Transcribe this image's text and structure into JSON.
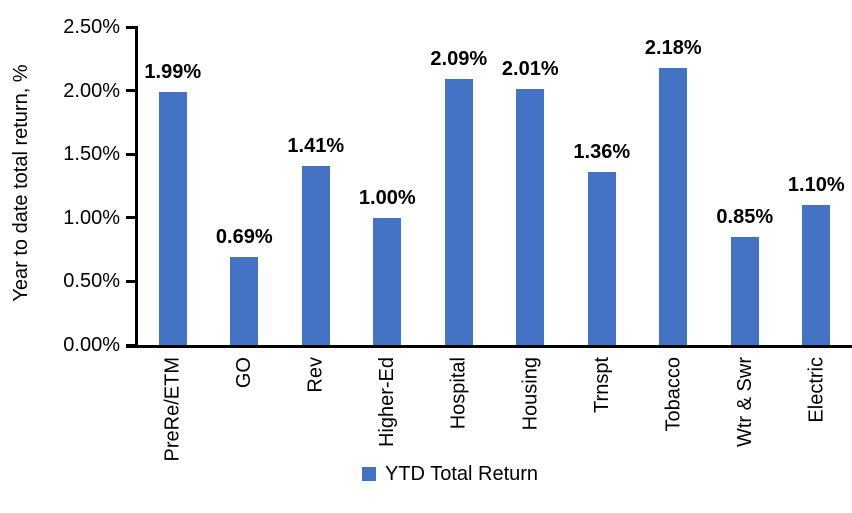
{
  "chart_data": {
    "type": "bar",
    "title": "",
    "xlabel": "",
    "ylabel": "Year to date total return, %",
    "categories": [
      "PreRe/ETM",
      "GO",
      "Rev",
      "Higher-Ed",
      "Hospital",
      "Housing",
      "Trnspt",
      "Tobacco",
      "Wtr & Swr",
      "Electric"
    ],
    "series": [
      {
        "name": "YTD Total Return",
        "values": [
          1.99,
          0.69,
          1.41,
          1.0,
          2.09,
          2.01,
          1.36,
          2.18,
          0.85,
          1.1
        ]
      }
    ],
    "data_labels": [
      "1.99%",
      "0.69%",
      "1.41%",
      "1.00%",
      "2.09%",
      "2.01%",
      "1.36%",
      "2.18%",
      "0.85%",
      "1.10%"
    ],
    "ytick_labels": [
      "0.00%",
      "0.50%",
      "1.00%",
      "1.50%",
      "2.00%",
      "2.50%"
    ],
    "ytick_values": [
      0,
      0.5,
      1.0,
      1.5,
      2.0,
      2.5
    ],
    "ylim": [
      0,
      2.5
    ],
    "grid": false,
    "legend_position": "bottom-center",
    "colors": {
      "bar": "#4472C4",
      "axis": "#000000",
      "text": "#000000",
      "background": "#FFFFFF"
    }
  }
}
